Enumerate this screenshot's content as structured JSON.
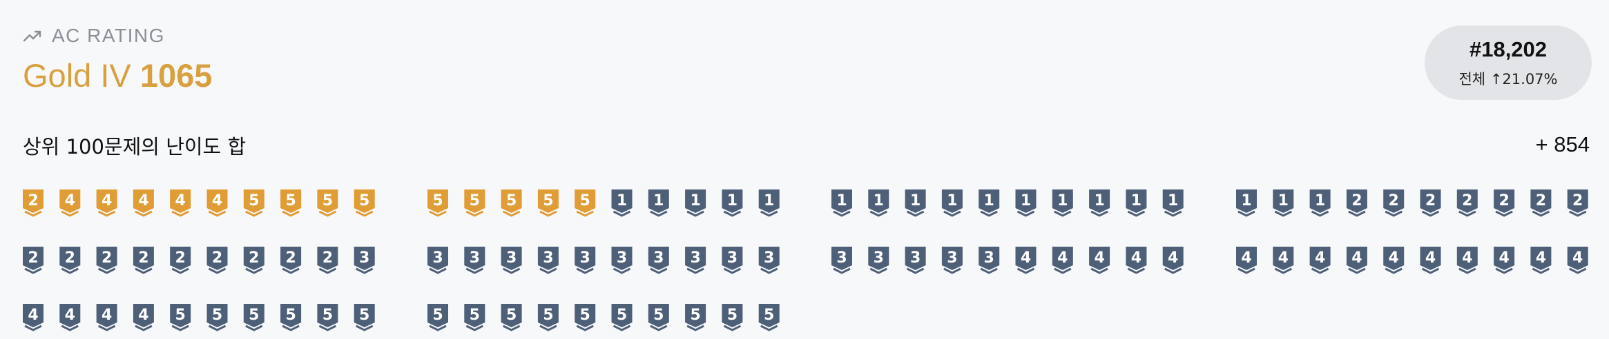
{
  "rating": {
    "label": "AC RATING",
    "tier": "Gold IV",
    "value": "1065",
    "icon": "trending-up-icon",
    "accent_color": "#d9a040"
  },
  "rank": {
    "number": "#18,202",
    "scope": "전체",
    "arrow": "↑",
    "percent": "21.07%"
  },
  "sum": {
    "label": "상위 100문제의 난이도 합",
    "value": "+ 854"
  },
  "badges": [
    {
      "level": 2,
      "tier": "gold"
    },
    {
      "level": 4,
      "tier": "gold"
    },
    {
      "level": 4,
      "tier": "gold"
    },
    {
      "level": 4,
      "tier": "gold"
    },
    {
      "level": 4,
      "tier": "gold"
    },
    {
      "level": 4,
      "tier": "gold"
    },
    {
      "level": 5,
      "tier": "gold"
    },
    {
      "level": 5,
      "tier": "gold"
    },
    {
      "level": 5,
      "tier": "gold"
    },
    {
      "level": 5,
      "tier": "gold"
    },
    {
      "level": 5,
      "tier": "gold"
    },
    {
      "level": 5,
      "tier": "gold"
    },
    {
      "level": 5,
      "tier": "gold"
    },
    {
      "level": 5,
      "tier": "gold"
    },
    {
      "level": 5,
      "tier": "gold"
    },
    {
      "level": 1,
      "tier": "silver"
    },
    {
      "level": 1,
      "tier": "silver"
    },
    {
      "level": 1,
      "tier": "silver"
    },
    {
      "level": 1,
      "tier": "silver"
    },
    {
      "level": 1,
      "tier": "silver"
    },
    {
      "level": 1,
      "tier": "silver"
    },
    {
      "level": 1,
      "tier": "silver"
    },
    {
      "level": 1,
      "tier": "silver"
    },
    {
      "level": 1,
      "tier": "silver"
    },
    {
      "level": 1,
      "tier": "silver"
    },
    {
      "level": 1,
      "tier": "silver"
    },
    {
      "level": 1,
      "tier": "silver"
    },
    {
      "level": 1,
      "tier": "silver"
    },
    {
      "level": 1,
      "tier": "silver"
    },
    {
      "level": 1,
      "tier": "silver"
    },
    {
      "level": 1,
      "tier": "silver"
    },
    {
      "level": 1,
      "tier": "silver"
    },
    {
      "level": 1,
      "tier": "silver"
    },
    {
      "level": 2,
      "tier": "silver"
    },
    {
      "level": 2,
      "tier": "silver"
    },
    {
      "level": 2,
      "tier": "silver"
    },
    {
      "level": 2,
      "tier": "silver"
    },
    {
      "level": 2,
      "tier": "silver"
    },
    {
      "level": 2,
      "tier": "silver"
    },
    {
      "level": 2,
      "tier": "silver"
    },
    {
      "level": 2,
      "tier": "silver"
    },
    {
      "level": 2,
      "tier": "silver"
    },
    {
      "level": 2,
      "tier": "silver"
    },
    {
      "level": 2,
      "tier": "silver"
    },
    {
      "level": 2,
      "tier": "silver"
    },
    {
      "level": 2,
      "tier": "silver"
    },
    {
      "level": 2,
      "tier": "silver"
    },
    {
      "level": 2,
      "tier": "silver"
    },
    {
      "level": 2,
      "tier": "silver"
    },
    {
      "level": 3,
      "tier": "silver"
    },
    {
      "level": 3,
      "tier": "silver"
    },
    {
      "level": 3,
      "tier": "silver"
    },
    {
      "level": 3,
      "tier": "silver"
    },
    {
      "level": 3,
      "tier": "silver"
    },
    {
      "level": 3,
      "tier": "silver"
    },
    {
      "level": 3,
      "tier": "silver"
    },
    {
      "level": 3,
      "tier": "silver"
    },
    {
      "level": 3,
      "tier": "silver"
    },
    {
      "level": 3,
      "tier": "silver"
    },
    {
      "level": 3,
      "tier": "silver"
    },
    {
      "level": 3,
      "tier": "silver"
    },
    {
      "level": 3,
      "tier": "silver"
    },
    {
      "level": 3,
      "tier": "silver"
    },
    {
      "level": 3,
      "tier": "silver"
    },
    {
      "level": 3,
      "tier": "silver"
    },
    {
      "level": 4,
      "tier": "silver"
    },
    {
      "level": 4,
      "tier": "silver"
    },
    {
      "level": 4,
      "tier": "silver"
    },
    {
      "level": 4,
      "tier": "silver"
    },
    {
      "level": 4,
      "tier": "silver"
    },
    {
      "level": 4,
      "tier": "silver"
    },
    {
      "level": 4,
      "tier": "silver"
    },
    {
      "level": 4,
      "tier": "silver"
    },
    {
      "level": 4,
      "tier": "silver"
    },
    {
      "level": 4,
      "tier": "silver"
    },
    {
      "level": 4,
      "tier": "silver"
    },
    {
      "level": 4,
      "tier": "silver"
    },
    {
      "level": 4,
      "tier": "silver"
    },
    {
      "level": 4,
      "tier": "silver"
    },
    {
      "level": 4,
      "tier": "silver"
    },
    {
      "level": 4,
      "tier": "silver"
    },
    {
      "level": 4,
      "tier": "silver"
    },
    {
      "level": 4,
      "tier": "silver"
    },
    {
      "level": 4,
      "tier": "silver"
    },
    {
      "level": 5,
      "tier": "silver"
    },
    {
      "level": 5,
      "tier": "silver"
    },
    {
      "level": 5,
      "tier": "silver"
    },
    {
      "level": 5,
      "tier": "silver"
    },
    {
      "level": 5,
      "tier": "silver"
    },
    {
      "level": 5,
      "tier": "silver"
    },
    {
      "level": 5,
      "tier": "silver"
    },
    {
      "level": 5,
      "tier": "silver"
    },
    {
      "level": 5,
      "tier": "silver"
    },
    {
      "level": 5,
      "tier": "silver"
    },
    {
      "level": 5,
      "tier": "silver"
    },
    {
      "level": 5,
      "tier": "silver"
    },
    {
      "level": 5,
      "tier": "silver"
    },
    {
      "level": 5,
      "tier": "silver"
    },
    {
      "level": 5,
      "tier": "silver"
    },
    {
      "level": 5,
      "tier": "silver"
    }
  ],
  "colors": {
    "gold": "#e09c35",
    "silver": "#4e5f78",
    "text_muted": "#8b8f96",
    "pill_bg": "#e3e4e7"
  }
}
